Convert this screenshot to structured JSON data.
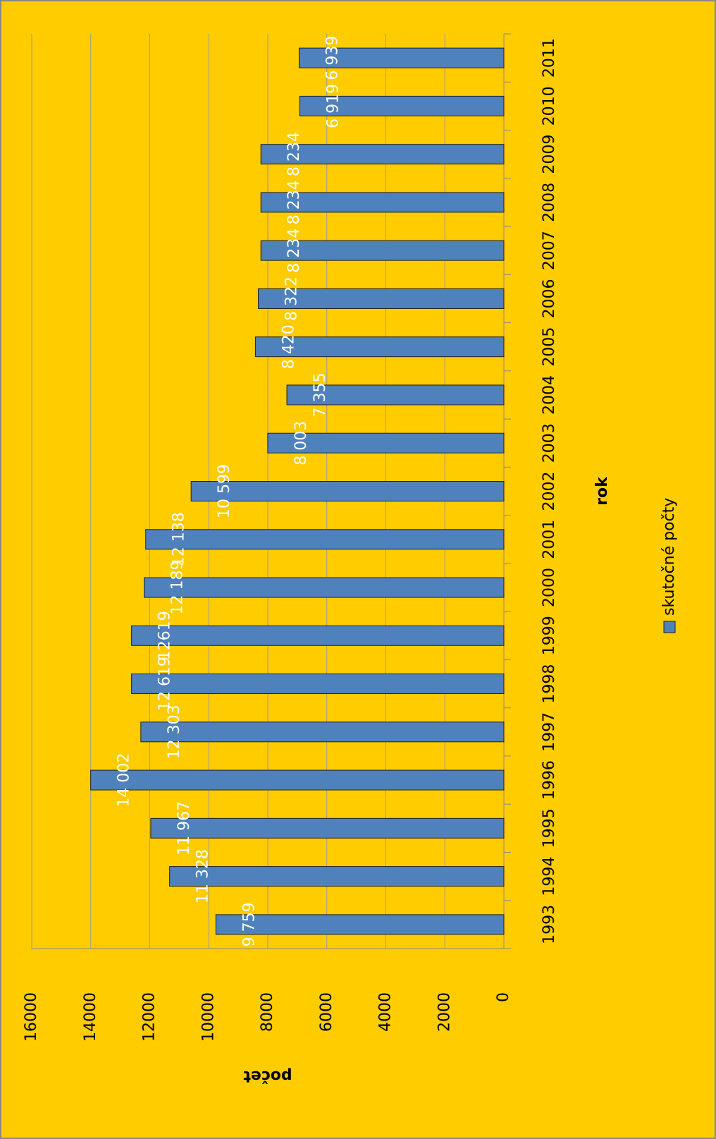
{
  "chart_data": {
    "type": "bar",
    "categories": [
      "1993",
      "1994",
      "1995",
      "1996",
      "1997",
      "1998",
      "1999",
      "2000",
      "2001",
      "2002",
      "2003",
      "2004",
      "2005",
      "2006",
      "2007",
      "2008",
      "2009",
      "2010",
      "2011"
    ],
    "series": [
      {
        "name": "skutočné počty",
        "color": "#4f81bd",
        "values": [
          9759,
          11328,
          11967,
          14002,
          12303,
          12619,
          12619,
          12189,
          12138,
          10599,
          8003,
          7355,
          8420,
          8322,
          8234,
          8234,
          8234,
          6919,
          6939
        ],
        "value_labels": [
          "9 759",
          "11 328",
          "11 967",
          "14 002",
          "12 303",
          "12 619",
          "12619",
          "12 189",
          "12 138",
          "10 599",
          "8 003",
          "7 355",
          "8 420",
          "8 322",
          "8 234",
          "8 234",
          "8 234",
          "6 919",
          "6 939"
        ]
      }
    ],
    "x_label": "rok",
    "y_label": "počet",
    "ylim": [
      0,
      16000
    ],
    "yticks": [
      0,
      2000,
      4000,
      6000,
      8000,
      10000,
      12000,
      14000,
      16000
    ],
    "grid": true,
    "legend": "right",
    "rotation": -90
  }
}
